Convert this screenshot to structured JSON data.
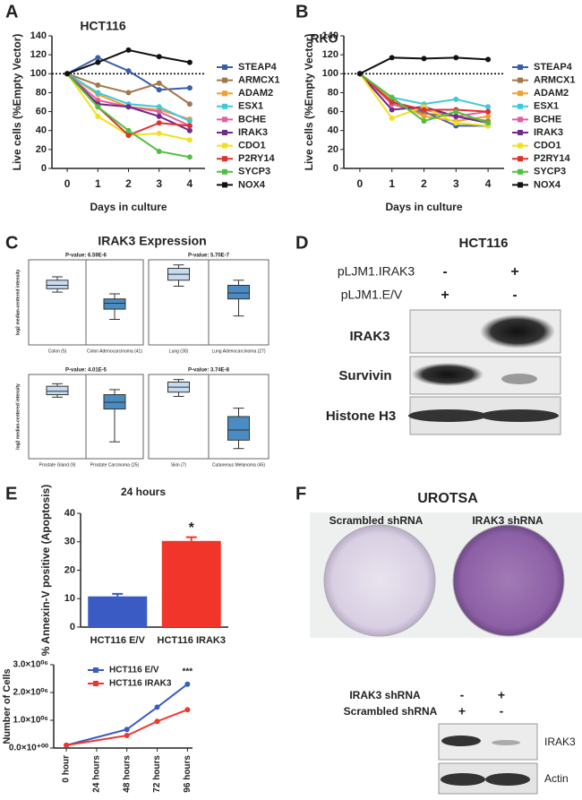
{
  "panel_labels": [
    "A",
    "B",
    "C",
    "D",
    "E",
    "F"
  ],
  "panel_c": {
    "title": "IRAK3 Expression"
  },
  "panel_d": {
    "title": "HCT116",
    "rows": [
      {
        "label": "pLJM1.IRAK3",
        "lanes": [
          "-",
          "+"
        ]
      },
      {
        "label": "pLJM1.E/V",
        "lanes": [
          "+",
          "-"
        ]
      }
    ],
    "blots": [
      "IRAK3",
      "Survivin",
      "Histone H3"
    ]
  },
  "panel_f": {
    "title": "UROTSA",
    "plates": [
      "Scrambled shRNA",
      "IRAK3 shRNA"
    ],
    "rows": [
      {
        "label": "IRAK3 shRNA",
        "lanes": [
          "-",
          "+"
        ]
      },
      {
        "label": "Scrambled shRNA",
        "lanes": [
          "+",
          "-"
        ]
      }
    ],
    "blots": [
      "IRAK3",
      "Actin"
    ]
  },
  "chart_data": [
    {
      "type": "line",
      "title": "HCT116",
      "x": [
        0,
        1,
        2,
        3,
        4
      ],
      "xlim": [
        -0.5,
        4.5
      ],
      "xticks": [
        0,
        1,
        2,
        3,
        4
      ],
      "ylim": [
        0,
        140
      ],
      "yticks": [
        0,
        20,
        40,
        60,
        80,
        100,
        120,
        140
      ],
      "reference_line": 100,
      "x_label": "Days in culture",
      "y_label": "Live cells (%Empty Vector)",
      "legend": "right",
      "series": [
        {
          "name": "STEAP4",
          "color": "#3a5fa8",
          "values": [
            100,
            117,
            103,
            83,
            85
          ]
        },
        {
          "name": "ARMCX1",
          "color": "#a0784a",
          "values": [
            100,
            88,
            80,
            90,
            68
          ]
        },
        {
          "name": "ADAM2",
          "color": "#f0a030",
          "values": [
            100,
            78,
            65,
            62,
            52
          ]
        },
        {
          "name": "ESX1",
          "color": "#40c8d8",
          "values": [
            100,
            80,
            68,
            65,
            50
          ]
        },
        {
          "name": "BCHE",
          "color": "#e060a0",
          "values": [
            100,
            72,
            65,
            60,
            45
          ]
        },
        {
          "name": "IRAK3",
          "color": "#702a8a",
          "values": [
            100,
            68,
            65,
            55,
            40
          ]
        },
        {
          "name": "CDO1",
          "color": "#f0e020",
          "values": [
            100,
            55,
            35,
            37,
            30
          ]
        },
        {
          "name": "P2RY14",
          "color": "#e03030",
          "values": [
            100,
            65,
            35,
            48,
            45
          ]
        },
        {
          "name": "SYCP3",
          "color": "#50c040",
          "values": [
            100,
            65,
            40,
            18,
            12
          ]
        },
        {
          "name": "NOX4",
          "color": "#111111",
          "values": [
            100,
            112,
            125,
            118,
            112
          ]
        }
      ]
    },
    {
      "type": "line",
      "title": "RKO",
      "x": [
        0,
        1,
        2,
        3,
        4
      ],
      "xlim": [
        -0.5,
        4.5
      ],
      "xticks": [
        0,
        1,
        2,
        3,
        4
      ],
      "ylim": [
        0,
        140
      ],
      "yticks": [
        0,
        20,
        40,
        60,
        80,
        100,
        120,
        140
      ],
      "reference_line": 100,
      "x_label": "Days in culture",
      "y_label": "Live cells (%Empty Vector)",
      "legend": "right",
      "series": [
        {
          "name": "STEAP4",
          "color": "#3a5fa8",
          "values": [
            100,
            70,
            60,
            45,
            45
          ]
        },
        {
          "name": "ARMCX1",
          "color": "#a0784a",
          "values": [
            100,
            68,
            58,
            55,
            50
          ]
        },
        {
          "name": "ADAM2",
          "color": "#f0a030",
          "values": [
            100,
            72,
            55,
            50,
            55
          ]
        },
        {
          "name": "ESX1",
          "color": "#40c8d8",
          "values": [
            100,
            75,
            68,
            73,
            65
          ]
        },
        {
          "name": "BCHE",
          "color": "#e060a0",
          "values": [
            100,
            68,
            62,
            55,
            60
          ]
        },
        {
          "name": "IRAK3",
          "color": "#702a8a",
          "values": [
            100,
            62,
            65,
            55,
            48
          ]
        },
        {
          "name": "CDO1",
          "color": "#f0e020",
          "values": [
            100,
            53,
            65,
            48,
            45
          ]
        },
        {
          "name": "P2RY14",
          "color": "#e03030",
          "values": [
            100,
            70,
            62,
            62,
            60
          ]
        },
        {
          "name": "SYCP3",
          "color": "#50c040",
          "values": [
            100,
            75,
            50,
            60,
            48
          ]
        },
        {
          "name": "NOX4",
          "color": "#111111",
          "values": [
            100,
            117,
            116,
            117,
            115
          ]
        }
      ]
    },
    {
      "type": "box",
      "annotation": "P-value: 6.59E-6",
      "y_label": "log2 median-centered intensity",
      "ylim": [
        0,
        10
      ],
      "categories": [
        "Colon (5)",
        "Colon Adenocarcinoma (41)"
      ],
      "colors": [
        "#c6dbef",
        "#4a8bc2"
      ],
      "boxes": [
        {
          "min": 6.2,
          "q1": 6.6,
          "median": 7.0,
          "q3": 7.6,
          "max": 8.0
        },
        {
          "min": 3.0,
          "q1": 4.2,
          "median": 4.9,
          "q3": 5.4,
          "max": 6.0
        }
      ]
    },
    {
      "type": "box",
      "annotation": "P-value: 5.70E-7",
      "ylim": [
        0,
        10
      ],
      "categories": [
        "Lung (30)",
        "Lung Adenocarcinoma (27)"
      ],
      "colors": [
        "#c6dbef",
        "#4a8bc2"
      ],
      "boxes": [
        {
          "min": 6.9,
          "q1": 7.6,
          "median": 8.3,
          "q3": 9.0,
          "max": 9.4
        },
        {
          "min": 3.4,
          "q1": 5.4,
          "median": 6.1,
          "q3": 7.0,
          "max": 7.6
        }
      ]
    },
    {
      "type": "box",
      "annotation": "P-value: 4.01E-5",
      "y_label": "log2 median-centered intensity",
      "ylim": [
        0,
        10
      ],
      "categories": [
        "Prostate Gland (9)",
        "Prostate Carcinoma (25)"
      ],
      "colors": [
        "#c6dbef",
        "#4a8bc2"
      ],
      "boxes": [
        {
          "min": 7.3,
          "q1": 7.6,
          "median": 8.0,
          "q3": 8.6,
          "max": 8.9
        },
        {
          "min": 2.0,
          "q1": 5.9,
          "median": 6.7,
          "q3": 7.6,
          "max": 8.2
        }
      ]
    },
    {
      "type": "box",
      "annotation": "P-value: 3.74E-8",
      "ylim": [
        0,
        10
      ],
      "categories": [
        "Skin (7)",
        "Cutaneous Melanoma (45)"
      ],
      "colors": [
        "#c6dbef",
        "#4a8bc2"
      ],
      "boxes": [
        {
          "min": 7.4,
          "q1": 7.9,
          "median": 8.5,
          "q3": 9.1,
          "max": 9.4
        },
        {
          "min": 1.2,
          "q1": 2.2,
          "median": 3.4,
          "q3": 5.0,
          "max": 6.0
        }
      ]
    },
    {
      "type": "bar",
      "title": "24 hours",
      "categories": [
        "HCT116 E/V",
        "HCT116 IRAK3"
      ],
      "values": [
        10.8,
        30.3
      ],
      "errors": [
        0.9,
        1.3
      ],
      "colors": [
        "#3b5bc4",
        "#f2352b"
      ],
      "ylim": [
        0,
        40
      ],
      "yticks": [
        0,
        10,
        20,
        30,
        40
      ],
      "y_label": "% Annexin-V positive (Apoptosis)",
      "annotation": "*"
    },
    {
      "type": "line",
      "x": [
        0,
        48,
        72,
        96
      ],
      "xlim": [
        -10,
        100
      ],
      "xticks": [
        {
          "value": 0,
          "label": "0 hour"
        },
        {
          "value": 24,
          "label": "24 hours"
        },
        {
          "value": 48,
          "label": "48 hours"
        },
        {
          "value": 72,
          "label": "72 hours"
        },
        {
          "value": 96,
          "label": "96 hours"
        }
      ],
      "ylim": [
        0,
        3000000
      ],
      "yticks": [
        {
          "value": 0,
          "label": "0.0×10⁺⁰⁰"
        },
        {
          "value": 1000000,
          "label": "1.0×10⁰⁶"
        },
        {
          "value": 2000000,
          "label": "2.0×10⁰⁶"
        },
        {
          "value": 3000000,
          "label": "3.0×10⁰⁶"
        }
      ],
      "y_label": "Number of Cells",
      "legend": "top-left",
      "annotation": "***",
      "series": [
        {
          "name": "HCT116 E/V",
          "color": "#3b5bc4",
          "values": [
            100000,
            670000,
            1470000,
            2300000
          ]
        },
        {
          "name": "HCT116 IRAK3",
          "color": "#f2352b",
          "values": [
            100000,
            450000,
            960000,
            1380000
          ]
        }
      ]
    }
  ]
}
